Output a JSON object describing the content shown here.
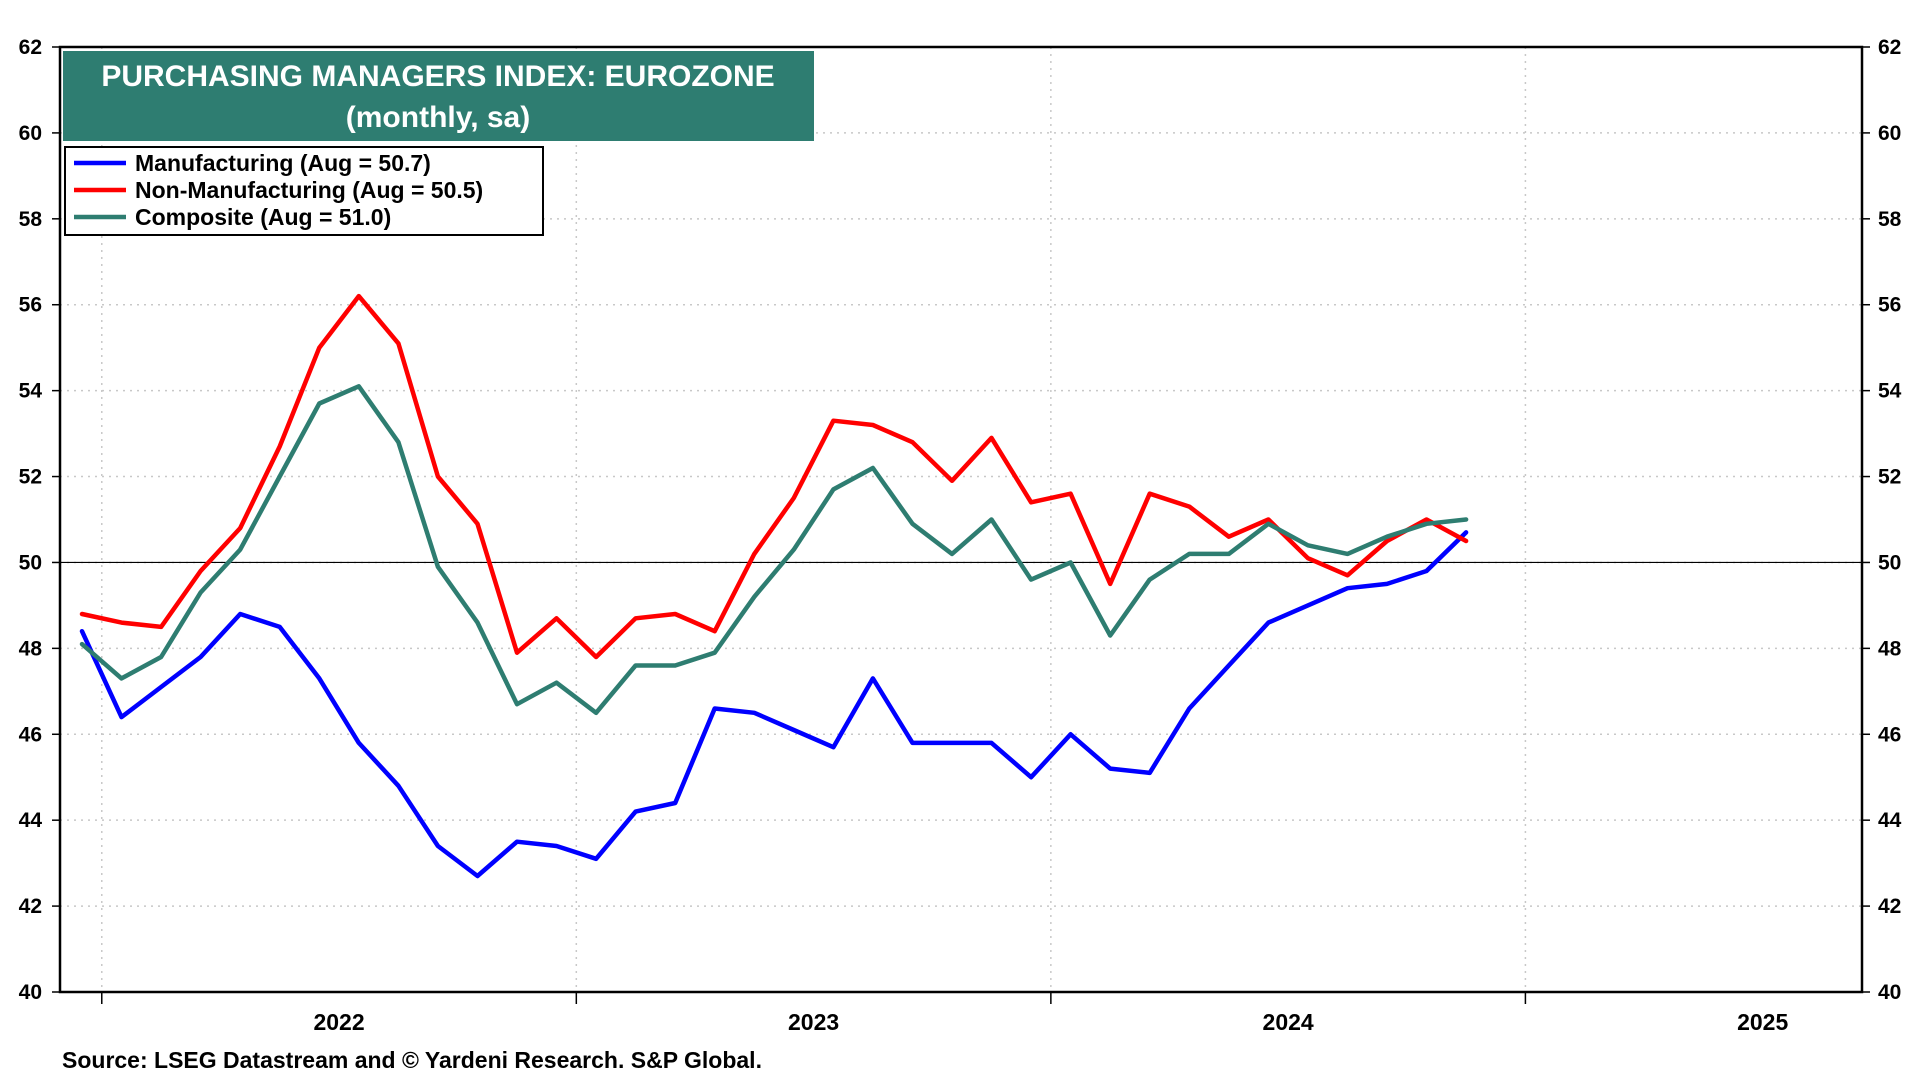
{
  "chart_data": {
    "type": "line",
    "title": "PURCHASING MANAGERS INDEX: EUROZONE",
    "subtitle": "(monthly, sa)",
    "source": "Source: LSEG Datastream and © Yardeni Research. S&P Global.",
    "ylim": [
      40,
      62
    ],
    "yticks": [
      40,
      42,
      44,
      46,
      48,
      50,
      52,
      54,
      56,
      58,
      60,
      62
    ],
    "y_axis_both_sides": true,
    "reference_line": 50,
    "grid": true,
    "legend_position": "top-left",
    "x_start": "2021-12",
    "x_end": "2025-08",
    "year_labels": [
      "2022",
      "2023",
      "2024",
      "2025"
    ],
    "x_months": [
      "2021-12",
      "2022-01",
      "2022-02",
      "2022-03",
      "2022-04",
      "2022-05",
      "2022-06",
      "2022-07",
      "2022-08",
      "2022-09",
      "2022-10",
      "2022-11",
      "2022-12",
      "2023-01",
      "2023-02",
      "2023-03",
      "2023-04",
      "2023-05",
      "2023-06",
      "2023-07",
      "2023-08",
      "2023-09",
      "2023-10",
      "2023-11",
      "2023-12",
      "2024-01",
      "2024-02",
      "2024-03",
      "2024-04",
      "2024-05",
      "2024-06",
      "2024-07",
      "2024-08",
      "2024-09",
      "2024-10",
      "2024-11",
      "2024-12",
      "2025-01",
      "2025-02",
      "2025-03",
      "2025-04",
      "2025-05",
      "2025-06",
      "2025-07",
      "2025-08"
    ],
    "series": [
      {
        "name": "Manufacturing (Aug = 50.7)",
        "color": "#0000ff",
        "values": [
          null,
          null,
          null,
          null,
          null,
          null,
          null,
          null,
          null,
          null,
          null,
          null,
          null,
          null,
          null,
          null,
          null,
          null,
          null,
          null,
          null,
          null,
          null,
          null,
          null,
          null,
          null,
          null,
          null,
          null,
          null,
          null,
          null,
          null,
          null,
          null,
          null,
          null,
          null,
          null,
          null,
          null,
          null,
          null,
          null
        ],
        "points": [
          [
            "2021-12",
            48.4
          ],
          [
            "2022-01",
            46.4
          ],
          [
            "2022-02",
            47.1
          ],
          [
            "2022-03",
            47.8
          ],
          [
            "2022-04",
            48.8
          ],
          [
            "2022-05",
            48.5
          ],
          [
            "2022-06",
            47.3
          ],
          [
            "2022-07",
            45.8
          ],
          [
            "2022-08",
            44.8
          ],
          [
            "2022-09",
            43.4
          ],
          [
            "2022-10",
            42.7
          ],
          [
            "2022-11",
            43.5
          ],
          [
            "2022-12",
            43.4
          ],
          [
            "2023-01",
            43.1
          ],
          [
            "2023-02",
            44.2
          ],
          [
            "2023-03",
            44.4
          ],
          [
            "2023-04",
            46.6
          ],
          [
            "2023-05",
            46.5
          ],
          [
            "2023-06",
            46.1
          ],
          [
            "2023-07",
            45.7
          ],
          [
            "2023-08",
            47.3
          ],
          [
            "2023-09",
            45.8
          ],
          [
            "2023-10",
            45.8
          ],
          [
            "2023-11",
            45.8
          ],
          [
            "2023-12",
            45.0
          ],
          [
            "2024-01",
            46.0
          ],
          [
            "2024-02",
            45.2
          ],
          [
            "2024-03",
            45.1
          ],
          [
            "2024-04",
            46.6
          ],
          [
            "2024-05",
            47.6
          ],
          [
            "2024-06",
            48.6
          ],
          [
            "2024-07",
            49.0
          ],
          [
            "2024-08",
            49.4
          ],
          [
            "2024-09",
            49.5
          ],
          [
            "2024-10",
            49.8
          ],
          [
            "2024-11",
            50.7
          ]
        ]
      },
      {
        "name": "Non-Manufacturing (Aug = 50.5)",
        "color": "#ff0000",
        "points": [
          [
            "2021-12",
            48.8
          ],
          [
            "2022-01",
            48.6
          ],
          [
            "2022-02",
            48.5
          ],
          [
            "2022-03",
            49.8
          ],
          [
            "2022-04",
            50.8
          ],
          [
            "2022-05",
            52.7
          ],
          [
            "2022-06",
            55.0
          ],
          [
            "2022-07",
            56.2
          ],
          [
            "2022-08",
            55.1
          ],
          [
            "2022-09",
            52.0
          ],
          [
            "2022-10",
            50.9
          ],
          [
            "2022-11",
            47.9
          ],
          [
            "2022-12",
            48.7
          ],
          [
            "2023-01",
            47.8
          ],
          [
            "2023-02",
            48.7
          ],
          [
            "2023-03",
            48.8
          ],
          [
            "2023-04",
            48.4
          ],
          [
            "2023-05",
            50.2
          ],
          [
            "2023-06",
            51.5
          ],
          [
            "2023-07",
            53.3
          ],
          [
            "2023-08",
            53.2
          ],
          [
            "2023-09",
            52.8
          ],
          [
            "2023-10",
            51.9
          ],
          [
            "2023-11",
            52.9
          ],
          [
            "2023-12",
            51.4
          ],
          [
            "2024-01",
            51.6
          ],
          [
            "2024-02",
            49.5
          ],
          [
            "2024-03",
            51.6
          ],
          [
            "2024-04",
            51.3
          ],
          [
            "2024-05",
            50.6
          ],
          [
            "2024-06",
            51.0
          ],
          [
            "2024-07",
            50.1
          ],
          [
            "2024-08",
            49.7
          ],
          [
            "2024-09",
            50.5
          ],
          [
            "2024-10",
            51.0
          ],
          [
            "2024-11",
            50.5
          ]
        ]
      },
      {
        "name": "Composite (Aug = 51.0)",
        "color": "#2e7d71",
        "points": [
          [
            "2021-12",
            48.1
          ],
          [
            "2022-01",
            47.3
          ],
          [
            "2022-02",
            47.8
          ],
          [
            "2022-03",
            49.3
          ],
          [
            "2022-04",
            50.3
          ],
          [
            "2022-05",
            52.0
          ],
          [
            "2022-06",
            53.7
          ],
          [
            "2022-07",
            54.1
          ],
          [
            "2022-08",
            52.8
          ],
          [
            "2022-09",
            49.9
          ],
          [
            "2022-10",
            48.6
          ],
          [
            "2022-11",
            46.7
          ],
          [
            "2022-12",
            47.2
          ],
          [
            "2023-01",
            46.5
          ],
          [
            "2023-02",
            47.6
          ],
          [
            "2023-03",
            47.6
          ],
          [
            "2023-04",
            47.9
          ],
          [
            "2023-05",
            49.2
          ],
          [
            "2023-06",
            50.3
          ],
          [
            "2023-07",
            51.7
          ],
          [
            "2023-08",
            52.2
          ],
          [
            "2023-09",
            50.9
          ],
          [
            "2023-10",
            50.2
          ],
          [
            "2023-11",
            51.0
          ],
          [
            "2023-12",
            49.6
          ],
          [
            "2024-01",
            50.0
          ],
          [
            "2024-02",
            48.3
          ],
          [
            "2024-03",
            49.6
          ],
          [
            "2024-04",
            50.2
          ],
          [
            "2024-05",
            50.2
          ],
          [
            "2024-06",
            50.9
          ],
          [
            "2024-07",
            50.4
          ],
          [
            "2024-08",
            50.2
          ],
          [
            "2024-09",
            50.6
          ],
          [
            "2024-10",
            50.9
          ],
          [
            "2024-11",
            51.0
          ]
        ]
      }
    ]
  },
  "colors": {
    "title_bg": "#2e7d71",
    "axis": "#000000",
    "grid": "#c8c8c8"
  }
}
